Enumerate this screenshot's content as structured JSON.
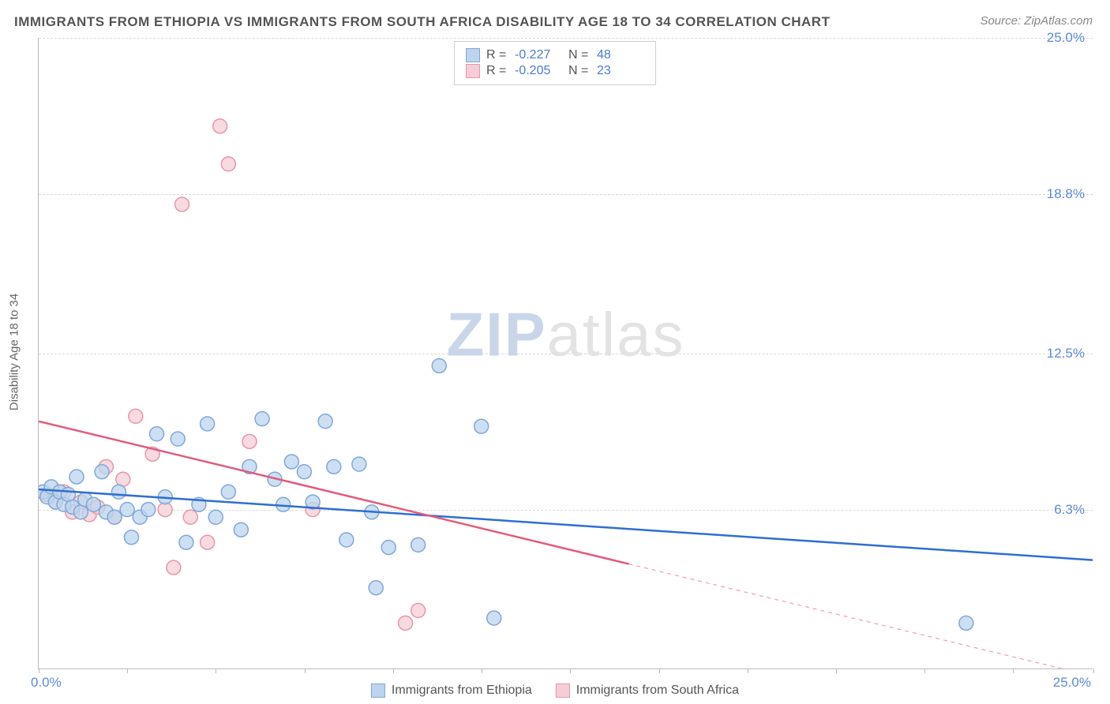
{
  "title": "IMMIGRANTS FROM ETHIOPIA VS IMMIGRANTS FROM SOUTH AFRICA DISABILITY AGE 18 TO 34 CORRELATION CHART",
  "source_text": "Source: ZipAtlas.com",
  "ylabel": "Disability Age 18 to 34",
  "watermark_zip": "ZIP",
  "watermark_atlas": "atlas",
  "chart": {
    "type": "scatter-with-regression",
    "xlim": [
      0,
      25
    ],
    "ylim": [
      0,
      25
    ],
    "x_tick_positions": [
      0,
      2.1,
      4.2,
      6.3,
      8.4,
      10.5,
      12.6,
      14.7,
      16.8,
      18.9,
      21.0,
      23.1,
      25
    ],
    "x_start_label": "0.0%",
    "x_end_label": "25.0%",
    "y_gridlines": [
      6.3,
      12.5,
      18.8,
      25.0
    ],
    "y_tick_labels": [
      "6.3%",
      "12.5%",
      "18.8%",
      "25.0%"
    ],
    "background_color": "#ffffff",
    "grid_color": "#d8d8d8",
    "axis_color": "#bbbbbb",
    "tick_label_color": "#5b8bd4",
    "marker_radius": 9,
    "marker_stroke_width": 1.5,
    "trend_line_width": 2.5
  },
  "series": [
    {
      "name": "Immigrants from Ethiopia",
      "fill_color": "#bcd4ee",
      "stroke_color": "#7fa8d9",
      "line_color": "#2f6fd0",
      "R": "-0.227",
      "N": "48",
      "trend": {
        "x1": 0,
        "y1": 7.1,
        "x2": 25,
        "y2": 4.3,
        "solid_until": 25
      },
      "points": [
        [
          0.1,
          7.0
        ],
        [
          0.2,
          6.8
        ],
        [
          0.3,
          7.2
        ],
        [
          0.4,
          6.6
        ],
        [
          0.5,
          7.0
        ],
        [
          0.6,
          6.5
        ],
        [
          0.7,
          6.9
        ],
        [
          0.8,
          6.4
        ],
        [
          0.9,
          7.6
        ],
        [
          1.0,
          6.2
        ],
        [
          1.1,
          6.7
        ],
        [
          1.3,
          6.5
        ],
        [
          1.5,
          7.8
        ],
        [
          1.6,
          6.2
        ],
        [
          1.8,
          6.0
        ],
        [
          1.9,
          7.0
        ],
        [
          2.1,
          6.3
        ],
        [
          2.2,
          5.2
        ],
        [
          2.4,
          6.0
        ],
        [
          2.6,
          6.3
        ],
        [
          2.8,
          9.3
        ],
        [
          3.0,
          6.8
        ],
        [
          3.3,
          9.1
        ],
        [
          3.5,
          5.0
        ],
        [
          3.8,
          6.5
        ],
        [
          4.0,
          9.7
        ],
        [
          4.2,
          6.0
        ],
        [
          4.5,
          7.0
        ],
        [
          4.8,
          5.5
        ],
        [
          5.0,
          8.0
        ],
        [
          5.3,
          9.9
        ],
        [
          5.6,
          7.5
        ],
        [
          5.8,
          6.5
        ],
        [
          6.0,
          8.2
        ],
        [
          6.3,
          7.8
        ],
        [
          6.5,
          6.6
        ],
        [
          6.8,
          9.8
        ],
        [
          7.0,
          8.0
        ],
        [
          7.3,
          5.1
        ],
        [
          7.6,
          8.1
        ],
        [
          7.9,
          6.2
        ],
        [
          8.0,
          3.2
        ],
        [
          8.3,
          4.8
        ],
        [
          9.0,
          4.9
        ],
        [
          9.5,
          12.0
        ],
        [
          10.5,
          9.6
        ],
        [
          10.8,
          2.0
        ],
        [
          22.0,
          1.8
        ]
      ]
    },
    {
      "name": "Immigrants from South Africa",
      "fill_color": "#f6cdd7",
      "stroke_color": "#e597ab",
      "line_color": "#e35a7a",
      "R": "-0.205",
      "N": "23",
      "trend": {
        "x1": 0,
        "y1": 9.8,
        "x2": 25,
        "y2": -0.3,
        "solid_until": 14
      },
      "points": [
        [
          0.2,
          6.9
        ],
        [
          0.4,
          6.6
        ],
        [
          0.6,
          7.0
        ],
        [
          0.8,
          6.2
        ],
        [
          1.0,
          6.6
        ],
        [
          1.2,
          6.1
        ],
        [
          1.4,
          6.4
        ],
        [
          1.6,
          8.0
        ],
        [
          1.8,
          6.0
        ],
        [
          2.0,
          7.5
        ],
        [
          2.3,
          10.0
        ],
        [
          2.7,
          8.5
        ],
        [
          3.0,
          6.3
        ],
        [
          3.2,
          4.0
        ],
        [
          3.4,
          18.4
        ],
        [
          3.6,
          6.0
        ],
        [
          4.0,
          5.0
        ],
        [
          4.3,
          21.5
        ],
        [
          4.5,
          20.0
        ],
        [
          5.0,
          9.0
        ],
        [
          6.5,
          6.3
        ],
        [
          8.7,
          1.8
        ],
        [
          9.0,
          2.3
        ]
      ]
    }
  ],
  "legend_top": {
    "R_label": "R =",
    "N_label": "N ="
  },
  "legend_bottom_labels": [
    "Immigrants from Ethiopia",
    "Immigrants from South Africa"
  ]
}
